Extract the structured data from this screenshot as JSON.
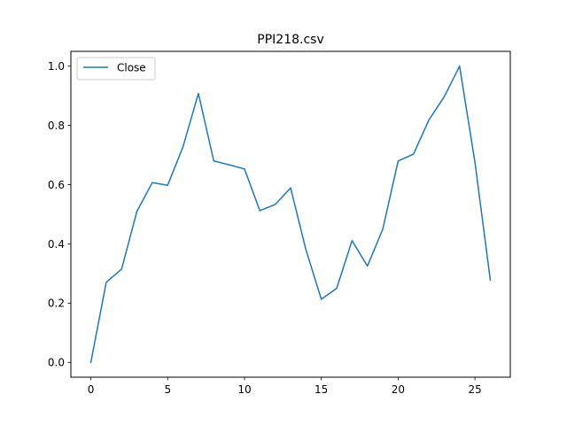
{
  "chart_data": {
    "type": "line",
    "title": "PPI218.csv",
    "xlabel": "",
    "ylabel": "",
    "x": [
      0,
      1,
      2,
      3,
      4,
      5,
      6,
      7,
      8,
      9,
      10,
      11,
      12,
      13,
      14,
      15,
      16,
      17,
      18,
      19,
      20,
      21,
      22,
      23,
      24,
      25,
      26
    ],
    "series": [
      {
        "name": "Close",
        "color": "#1f77b4",
        "values": [
          0.0,
          0.27,
          0.315,
          0.51,
          0.607,
          0.598,
          0.728,
          0.908,
          0.68,
          0.667,
          0.653,
          0.512,
          0.533,
          0.589,
          0.38,
          0.213,
          0.25,
          0.411,
          0.325,
          0.45,
          0.68,
          0.703,
          0.818,
          0.897,
          1.0,
          0.675,
          0.278
        ]
      }
    ],
    "xlim": [
      -1.3,
      27.3
    ],
    "ylim": [
      -0.05,
      1.05
    ],
    "xticks": [
      0,
      5,
      10,
      15,
      20,
      25
    ],
    "xtick_labels": [
      "0",
      "5",
      "10",
      "15",
      "20",
      "25"
    ],
    "yticks": [
      0.0,
      0.2,
      0.4,
      0.6,
      0.8,
      1.0
    ],
    "ytick_labels": [
      "0.0",
      "0.2",
      "0.4",
      "0.6",
      "0.8",
      "1.0"
    ],
    "grid": false,
    "legend": "upper-left"
  }
}
